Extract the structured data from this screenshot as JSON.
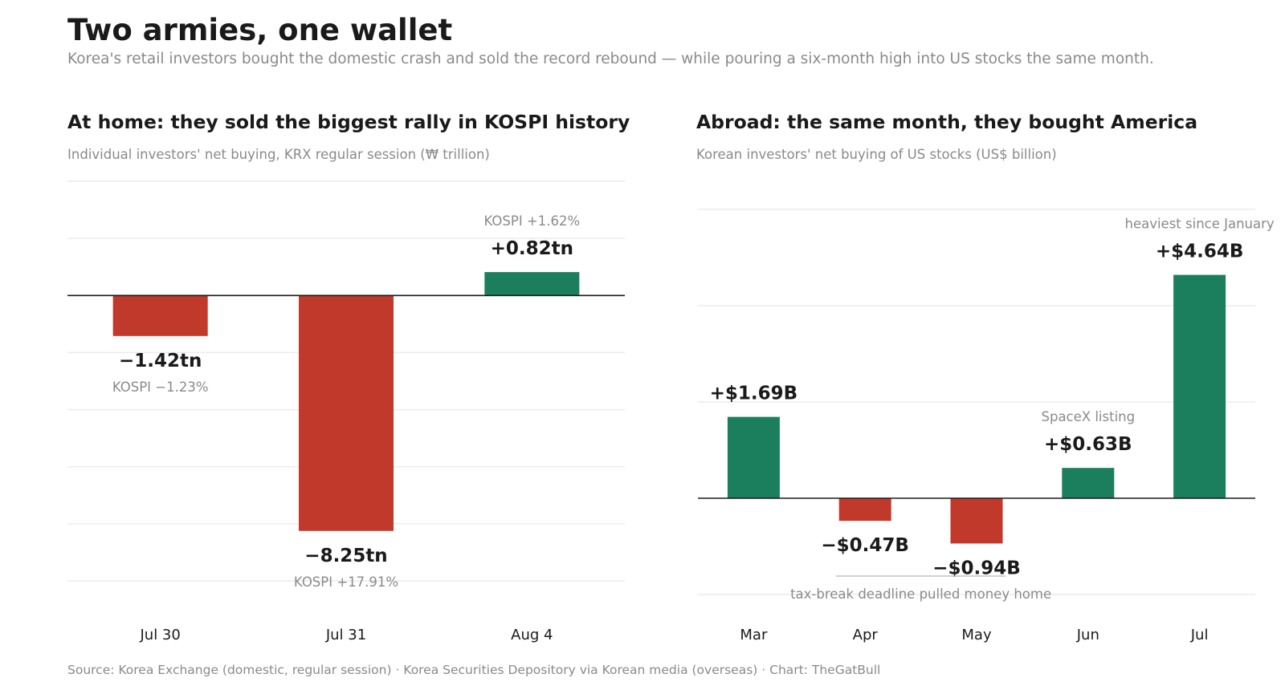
{
  "title": "Two armies, one wallet",
  "subtitle": "Korea's retail investors bought the domestic crash and sold the record rebound — while pouring a six-month high into US stocks the same month.",
  "footer": "Source: Korea Exchange (domestic, regular session) · Korea Securities Depository via Korean media (overseas)  ·  Chart: TheGatBull",
  "colors": {
    "positive": "#1b7f5e",
    "negative": "#c0392b"
  },
  "chart_data": [
    {
      "type": "bar",
      "title": "At home: they sold the biggest rally in KOSPI history",
      "subtitle": "Individual investors' net buying, KRX regular session (₩ trillion)",
      "categories": [
        "Jul 30",
        "Jul 31",
        "Aug 4"
      ],
      "values": [
        -1.42,
        -8.25,
        0.82
      ],
      "data_labels": [
        "−1.42tn",
        "−8.25tn",
        "+0.82tn"
      ],
      "annotations": [
        "KOSPI −1.23%",
        "KOSPI +17.91%",
        "KOSPI +1.62%"
      ],
      "ylim": [
        -10,
        4
      ],
      "grid": true
    },
    {
      "type": "bar",
      "title": "Abroad: the same month, they bought America",
      "subtitle": "Korean investors' net buying of US stocks (US$ billion)",
      "categories": [
        "Mar",
        "Apr",
        "May",
        "Jun",
        "Jul"
      ],
      "values": [
        1.69,
        -0.47,
        -0.94,
        0.63,
        4.64
      ],
      "data_labels": [
        "+$1.69B",
        "−$0.47B",
        "−$0.94B",
        "+$0.63B",
        "+$4.64B"
      ],
      "annotations": [
        "",
        "",
        "",
        "SpaceX listing",
        "heaviest since January"
      ],
      "bracket_note": "tax-break deadline pulled money home",
      "bracket_span": [
        "Apr",
        "May"
      ],
      "ylim": [
        -2,
        6
      ],
      "grid": true
    }
  ]
}
